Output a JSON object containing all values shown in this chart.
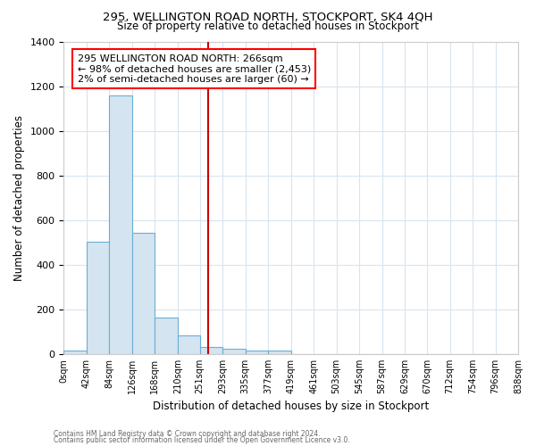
{
  "title1": "295, WELLINGTON ROAD NORTH, STOCKPORT, SK4 4QH",
  "title2": "Size of property relative to detached houses in Stockport",
  "xlabel": "Distribution of detached houses by size in Stockport",
  "ylabel": "Number of detached properties",
  "annotation_lines": [
    "295 WELLINGTON ROAD NORTH: 266sqm",
    "← 98% of detached houses are smaller (2,453)",
    "2% of semi-detached houses are larger (60) →"
  ],
  "property_size": 266,
  "bar_color": "#d4e4f0",
  "bar_edge_color": "#6aaed6",
  "vline_color": "#cc0000",
  "background_color": "#ffffff",
  "grid_color": "#d8e4ee",
  "bin_edges": [
    0,
    42,
    84,
    126,
    168,
    210,
    251,
    293,
    335,
    377,
    419,
    461,
    503,
    545,
    587,
    629,
    670,
    712,
    754,
    796,
    838
  ],
  "bin_counts": [
    14,
    503,
    1160,
    545,
    165,
    83,
    32,
    22,
    15,
    15,
    0,
    0,
    0,
    0,
    0,
    0,
    0,
    0,
    0,
    0
  ],
  "ylim": [
    0,
    1400
  ],
  "yticks": [
    0,
    200,
    400,
    600,
    800,
    1000,
    1200,
    1400
  ],
  "footnote1": "Contains HM Land Registry data © Crown copyright and database right 2024.",
  "footnote2": "Contains public sector information licensed under the Open Government Licence v3.0."
}
